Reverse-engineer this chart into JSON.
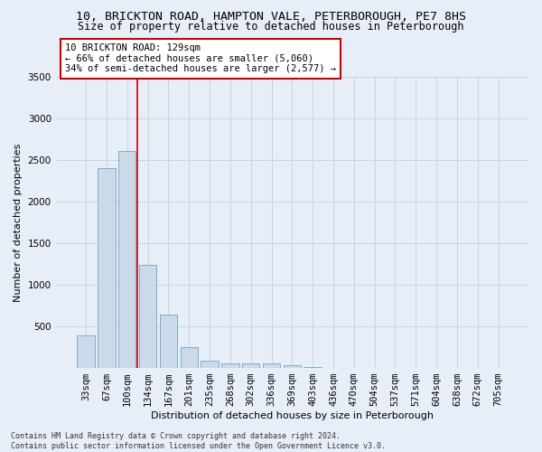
{
  "title1": "10, BRICKTON ROAD, HAMPTON VALE, PETERBOROUGH, PE7 8HS",
  "title2": "Size of property relative to detached houses in Peterborough",
  "xlabel": "Distribution of detached houses by size in Peterborough",
  "ylabel": "Number of detached properties",
  "footnote": "Contains HM Land Registry data © Crown copyright and database right 2024.\nContains public sector information licensed under the Open Government Licence v3.0.",
  "categories": [
    "33sqm",
    "67sqm",
    "100sqm",
    "134sqm",
    "167sqm",
    "201sqm",
    "235sqm",
    "268sqm",
    "302sqm",
    "336sqm",
    "369sqm",
    "403sqm",
    "436sqm",
    "470sqm",
    "504sqm",
    "537sqm",
    "571sqm",
    "604sqm",
    "638sqm",
    "672sqm",
    "705sqm"
  ],
  "values": [
    390,
    2400,
    2600,
    1240,
    640,
    250,
    90,
    60,
    60,
    50,
    30,
    10,
    5,
    3,
    2,
    1,
    1,
    0,
    0,
    0,
    0
  ],
  "bar_color": "#ccd9e8",
  "bar_edge_color": "#7aafc8",
  "bar_edge_width": 0.7,
  "grid_color": "#c8d4e4",
  "background_color": "#e8eef8",
  "vline_x": 2.5,
  "vline_color": "#cc0000",
  "annotation_text": "10 BRICKTON ROAD: 129sqm\n← 66% of detached houses are smaller (5,060)\n34% of semi-detached houses are larger (2,577) →",
  "annotation_box_color": "#ffffff",
  "annotation_box_edge": "#cc0000",
  "ylim": [
    0,
    3500
  ],
  "yticks": [
    0,
    500,
    1000,
    1500,
    2000,
    2500,
    3000,
    3500
  ],
  "title1_fontsize": 9.5,
  "title2_fontsize": 8.5,
  "xlabel_fontsize": 8,
  "ylabel_fontsize": 8,
  "tick_fontsize": 7.5,
  "annot_fontsize": 7.5
}
